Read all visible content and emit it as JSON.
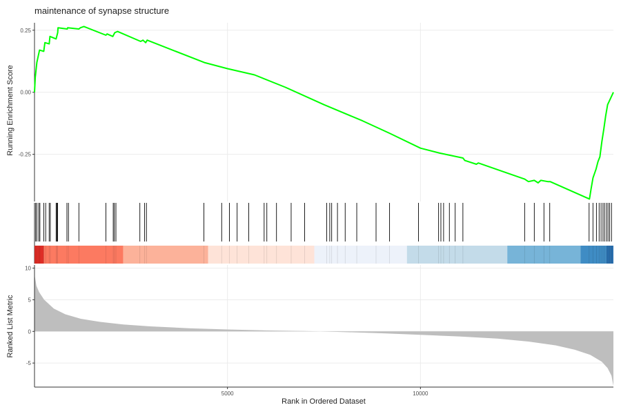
{
  "chart_data": {
    "type": "line",
    "title": "maintenance of synapse structure",
    "xlabel": "Rank in Ordered Dataset",
    "xlim": [
      0,
      15000
    ],
    "x_ticks": [
      5000,
      10000
    ],
    "es_panel": {
      "ylabel": "Running Enrichment Score",
      "ylim": [
        -0.44,
        0.28
      ],
      "y_ticks": [
        0.25,
        0.0,
        -0.25
      ],
      "color": "#00ff00",
      "series": [
        {
          "x": 0,
          "y": 0.0
        },
        {
          "x": 20,
          "y": 0.06
        },
        {
          "x": 60,
          "y": 0.12
        },
        {
          "x": 130,
          "y": 0.17
        },
        {
          "x": 240,
          "y": 0.165
        },
        {
          "x": 270,
          "y": 0.2
        },
        {
          "x": 380,
          "y": 0.195
        },
        {
          "x": 400,
          "y": 0.225
        },
        {
          "x": 560,
          "y": 0.215
        },
        {
          "x": 600,
          "y": 0.24
        },
        {
          "x": 610,
          "y": 0.26
        },
        {
          "x": 850,
          "y": 0.255
        },
        {
          "x": 860,
          "y": 0.26
        },
        {
          "x": 1150,
          "y": 0.255
        },
        {
          "x": 1190,
          "y": 0.26
        },
        {
          "x": 1280,
          "y": 0.265
        },
        {
          "x": 1850,
          "y": 0.23
        },
        {
          "x": 1880,
          "y": 0.235
        },
        {
          "x": 2030,
          "y": 0.225
        },
        {
          "x": 2080,
          "y": 0.24
        },
        {
          "x": 2150,
          "y": 0.245
        },
        {
          "x": 2750,
          "y": 0.205
        },
        {
          "x": 2810,
          "y": 0.21
        },
        {
          "x": 2880,
          "y": 0.2
        },
        {
          "x": 2920,
          "y": 0.21
        },
        {
          "x": 4400,
          "y": 0.12
        },
        {
          "x": 5000,
          "y": 0.095
        },
        {
          "x": 5700,
          "y": 0.07
        },
        {
          "x": 6500,
          "y": 0.02
        },
        {
          "x": 7500,
          "y": -0.05
        },
        {
          "x": 8500,
          "y": -0.115
        },
        {
          "x": 9200,
          "y": -0.165
        },
        {
          "x": 10000,
          "y": -0.225
        },
        {
          "x": 10500,
          "y": -0.245
        },
        {
          "x": 11100,
          "y": -0.265
        },
        {
          "x": 11150,
          "y": -0.275
        },
        {
          "x": 11450,
          "y": -0.29
        },
        {
          "x": 11500,
          "y": -0.285
        },
        {
          "x": 12700,
          "y": -0.35
        },
        {
          "x": 12800,
          "y": -0.36
        },
        {
          "x": 12950,
          "y": -0.355
        },
        {
          "x": 13050,
          "y": -0.365
        },
        {
          "x": 13120,
          "y": -0.355
        },
        {
          "x": 13300,
          "y": -0.36
        },
        {
          "x": 13360,
          "y": -0.36
        },
        {
          "x": 14380,
          "y": -0.43
        },
        {
          "x": 14420,
          "y": -0.39
        },
        {
          "x": 14470,
          "y": -0.345
        },
        {
          "x": 14550,
          "y": -0.31
        },
        {
          "x": 14600,
          "y": -0.28
        },
        {
          "x": 14650,
          "y": -0.26
        },
        {
          "x": 14700,
          "y": -0.2
        },
        {
          "x": 14750,
          "y": -0.15
        },
        {
          "x": 14800,
          "y": -0.095
        },
        {
          "x": 14850,
          "y": -0.05
        },
        {
          "x": 15000,
          "y": 0.0
        }
      ]
    },
    "hits": [
      30,
      60,
      110,
      140,
      240,
      290,
      380,
      410,
      560,
      580,
      600,
      840,
      880,
      1150,
      1850,
      2040,
      2070,
      2110,
      2730,
      2850,
      2900,
      4390,
      4850,
      5050,
      5250,
      5550,
      5950,
      6020,
      6270,
      6650,
      7000,
      7570,
      7650,
      7700,
      7850,
      8050,
      8350,
      8850,
      9200,
      9950,
      10470,
      10530,
      10600,
      10750,
      10900,
      11100,
      12700,
      12950,
      13200,
      13350,
      14370,
      14470,
      14560,
      14630,
      14680,
      14730,
      14770,
      14820,
      14860,
      14900,
      14950
    ],
    "heatmap_bands": [
      {
        "from": 0,
        "to": 240,
        "color": "#de2d26"
      },
      {
        "from": 240,
        "to": 2300,
        "color": "#fc7a61"
      },
      {
        "from": 2300,
        "to": 4500,
        "color": "#fcb29a"
      },
      {
        "from": 4500,
        "to": 7250,
        "color": "#fee3d8"
      },
      {
        "from": 7250,
        "to": 9650,
        "color": "#edf2fa"
      },
      {
        "from": 9650,
        "to": 12250,
        "color": "#c3dbe9"
      },
      {
        "from": 12250,
        "to": 14150,
        "color": "#77b4d8"
      },
      {
        "from": 14150,
        "to": 14820,
        "color": "#3f8cc4"
      },
      {
        "from": 14820,
        "to": 15000,
        "color": "#2a6fae"
      }
    ],
    "metric_panel": {
      "ylabel": "Ranked List Metric",
      "ylim": [
        -8.8,
        10.5
      ],
      "y_ticks": [
        10,
        5,
        0,
        -5
      ],
      "fill": "#bebebe",
      "curve": [
        {
          "x": 0,
          "y": 9.0
        },
        {
          "x": 50,
          "y": 7.2
        },
        {
          "x": 120,
          "y": 6.2
        },
        {
          "x": 250,
          "y": 5.0
        },
        {
          "x": 500,
          "y": 3.6
        },
        {
          "x": 800,
          "y": 2.7
        },
        {
          "x": 1200,
          "y": 2.0
        },
        {
          "x": 1700,
          "y": 1.5
        },
        {
          "x": 2300,
          "y": 1.1
        },
        {
          "x": 3000,
          "y": 0.8
        },
        {
          "x": 4000,
          "y": 0.5
        },
        {
          "x": 5000,
          "y": 0.3
        },
        {
          "x": 6000,
          "y": 0.15
        },
        {
          "x": 7000,
          "y": 0.05
        },
        {
          "x": 7400,
          "y": 0.0
        },
        {
          "x": 8000,
          "y": -0.1
        },
        {
          "x": 9000,
          "y": -0.3
        },
        {
          "x": 10000,
          "y": -0.55
        },
        {
          "x": 11000,
          "y": -0.8
        },
        {
          "x": 12000,
          "y": -1.15
        },
        {
          "x": 12800,
          "y": -1.6
        },
        {
          "x": 13500,
          "y": -2.2
        },
        {
          "x": 14000,
          "y": -2.9
        },
        {
          "x": 14400,
          "y": -3.7
        },
        {
          "x": 14700,
          "y": -4.8
        },
        {
          "x": 14850,
          "y": -5.8
        },
        {
          "x": 14950,
          "y": -7.0
        },
        {
          "x": 15000,
          "y": -8.6
        }
      ]
    }
  }
}
